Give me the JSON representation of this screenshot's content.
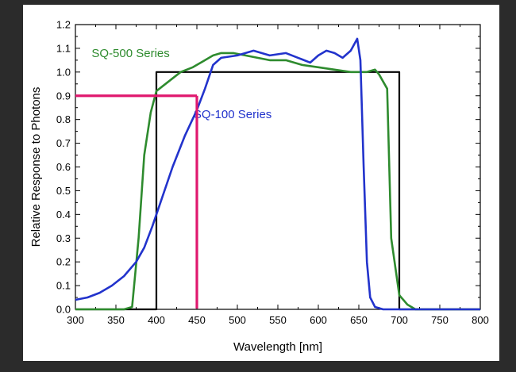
{
  "chart_data": {
    "type": "line",
    "xlabel": "Wavelength [nm]",
    "ylabel": "Relative Response to Photons",
    "xlim": [
      300,
      800
    ],
    "ylim": [
      0,
      1.2
    ],
    "xticks": [
      "300",
      "350",
      "400",
      "450",
      "500",
      "550",
      "600",
      "650",
      "700",
      "750",
      "800"
    ],
    "yticks": [
      "0.0",
      "0.1",
      "0.2",
      "0.3",
      "0.4",
      "0.5",
      "0.6",
      "0.7",
      "0.8",
      "0.9",
      "1.0",
      "1.1",
      "1.2"
    ],
    "grid": false,
    "series": [
      {
        "name": "SQ-500 Series",
        "color": "#2e8b2e",
        "x": [
          300,
          360,
          370,
          378,
          385,
          393,
          400,
          415,
          430,
          445,
          460,
          470,
          480,
          495,
          510,
          525,
          540,
          560,
          580,
          600,
          620,
          640,
          660,
          670,
          675,
          685,
          690,
          700,
          710,
          720,
          740,
          800
        ],
        "y": [
          0.0,
          0.0,
          0.01,
          0.3,
          0.65,
          0.83,
          0.92,
          0.96,
          1.0,
          1.02,
          1.05,
          1.07,
          1.08,
          1.08,
          1.07,
          1.06,
          1.05,
          1.05,
          1.03,
          1.02,
          1.01,
          1.0,
          1.0,
          1.01,
          0.99,
          0.93,
          0.3,
          0.06,
          0.02,
          0.0,
          0.0,
          0.0
        ]
      },
      {
        "name": "SQ-100 Series",
        "color": "#2233cc",
        "x": [
          300,
          315,
          330,
          345,
          360,
          375,
          385,
          395,
          405,
          420,
          435,
          450,
          460,
          470,
          480,
          500,
          520,
          540,
          560,
          575,
          590,
          600,
          610,
          620,
          630,
          640,
          648,
          652,
          656,
          660,
          664,
          670,
          680,
          700,
          800
        ],
        "y": [
          0.04,
          0.05,
          0.07,
          0.1,
          0.14,
          0.2,
          0.26,
          0.35,
          0.45,
          0.6,
          0.73,
          0.84,
          0.93,
          1.03,
          1.06,
          1.07,
          1.09,
          1.07,
          1.08,
          1.06,
          1.04,
          1.07,
          1.09,
          1.08,
          1.06,
          1.09,
          1.14,
          1.05,
          0.6,
          0.2,
          0.05,
          0.01,
          0.0,
          0.0,
          0.0
        ]
      },
      {
        "name": "",
        "color": "#000000",
        "x": [
          300,
          400,
          400,
          700,
          700,
          800
        ],
        "y": [
          0,
          0,
          1.0,
          1.0,
          0,
          0
        ]
      }
    ],
    "annotations": [
      {
        "type": "marker",
        "color": "#e0186e",
        "x": 450,
        "y": 0.9
      }
    ],
    "legend": "inline labels"
  }
}
